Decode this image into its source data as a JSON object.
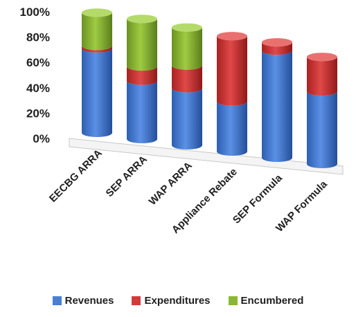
{
  "chart_data": {
    "type": "bar",
    "stacked": true,
    "percent": true,
    "three_d": true,
    "categories": [
      "EECBG ARRA",
      "SEP ARRA",
      "WAP ARRA",
      "Appliance Rebate",
      "SEP Formula",
      "WAP Formula"
    ],
    "series": [
      {
        "name": "Revenues",
        "color": "#4a7fd4",
        "values": [
          71,
          49,
          48,
          42,
          90,
          61
        ]
      },
      {
        "name": "Expenditures",
        "color": "#d33b3b",
        "values": [
          2,
          12,
          19,
          55,
          7,
          29
        ]
      },
      {
        "name": "Encumbered",
        "color": "#8ab833",
        "values": [
          28,
          40,
          32,
          0,
          0,
          0
        ]
      }
    ],
    "yticks": [
      "0%",
      "20%",
      "40%",
      "60%",
      "80%",
      "100%"
    ],
    "ylim": [
      0,
      100
    ],
    "grid": false,
    "legend_position": "bottom"
  }
}
